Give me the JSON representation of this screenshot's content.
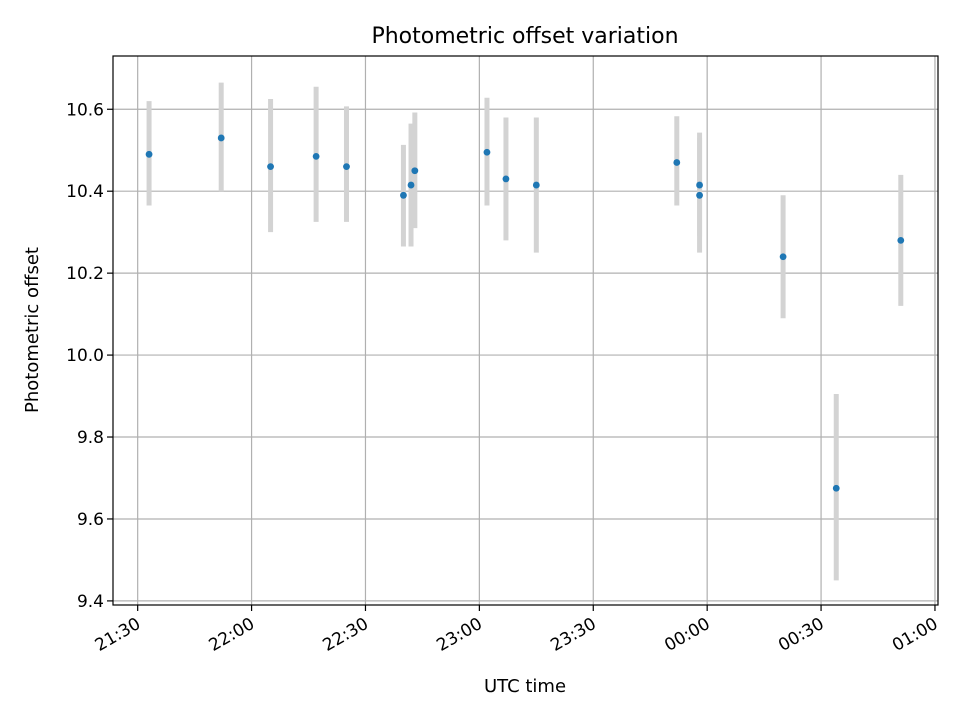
{
  "chart_data": {
    "type": "scatter",
    "title": "Photometric offset variation",
    "xlabel": "UTC time",
    "ylabel": "Photometric offset",
    "xticks": [
      "21:30",
      "22:00",
      "22:30",
      "23:00",
      "23:30",
      "00:00",
      "00:30",
      "01:00"
    ],
    "xtick_minutes": [
      0,
      30,
      60,
      90,
      120,
      150,
      180,
      210
    ],
    "xlim_minutes": [
      -6.5,
      210.8
    ],
    "yticks": [
      "9.4",
      "9.6",
      "9.8",
      "10.0",
      "10.2",
      "10.4",
      "10.6"
    ],
    "ylim": [
      9.39,
      10.73
    ],
    "grid": true,
    "point_color": "#1f77b4",
    "errorbar_color": "#d3d3d3",
    "series": [
      {
        "points": [
          {
            "t": "21:33",
            "y": 10.49,
            "lo": 10.365,
            "hi": 10.62
          },
          {
            "t": "21:52",
            "y": 10.53,
            "lo": 10.4,
            "hi": 10.665
          },
          {
            "t": "22:05",
            "y": 10.46,
            "lo": 10.3,
            "hi": 10.625
          },
          {
            "t": "22:17",
            "y": 10.485,
            "lo": 10.325,
            "hi": 10.655
          },
          {
            "t": "22:25",
            "y": 10.46,
            "lo": 10.325,
            "hi": 10.607
          },
          {
            "t": "22:40",
            "y": 10.39,
            "lo": 10.265,
            "hi": 10.513
          },
          {
            "t": "22:42",
            "y": 10.415,
            "lo": 10.265,
            "hi": 10.565
          },
          {
            "t": "22:43",
            "y": 10.45,
            "lo": 10.31,
            "hi": 10.592
          },
          {
            "t": "23:02",
            "y": 10.495,
            "lo": 10.365,
            "hi": 10.628
          },
          {
            "t": "23:07",
            "y": 10.43,
            "lo": 10.28,
            "hi": 10.58
          },
          {
            "t": "23:15",
            "y": 10.415,
            "lo": 10.25,
            "hi": 10.58
          },
          {
            "t": "23:52",
            "y": 10.47,
            "lo": 10.365,
            "hi": 10.583
          },
          {
            "t": "23:58",
            "y": 10.415,
            "lo": 10.29,
            "hi": 10.543
          },
          {
            "t": "23:58",
            "y": 10.39,
            "lo": 10.25,
            "hi": 10.53
          },
          {
            "t": "00:20",
            "y": 10.24,
            "lo": 10.09,
            "hi": 10.39
          },
          {
            "t": "00:34",
            "y": 9.675,
            "lo": 9.45,
            "hi": 9.905
          },
          {
            "t": "00:51",
            "y": 10.28,
            "lo": 10.12,
            "hi": 10.44
          }
        ]
      }
    ]
  }
}
